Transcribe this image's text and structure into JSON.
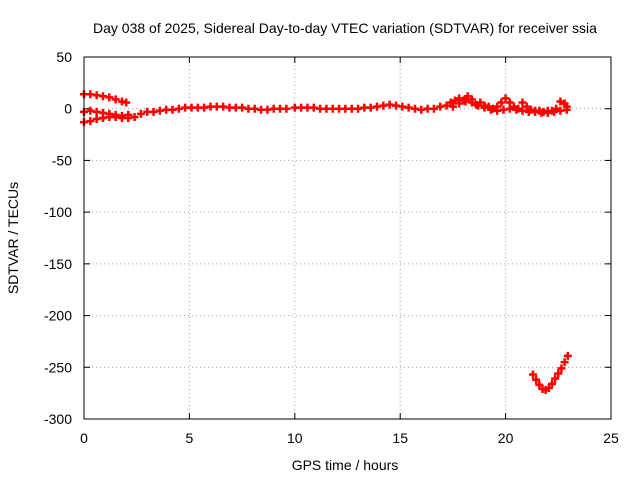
{
  "chart_data": {
    "type": "scatter",
    "title": "Day 038 of 2025, Sidereal Day-to-day VTEC variation (SDTVAR) for receiver ssia",
    "xlabel": "GPS time / hours",
    "ylabel": "SDTVAR / TECUs",
    "xlim": [
      0,
      25
    ],
    "ylim": [
      -300,
      50
    ],
    "xticks": [
      "0",
      "5",
      "10",
      "15",
      "20",
      "25"
    ],
    "yticks": [
      "50",
      "0",
      "-50",
      "-100",
      "-150",
      "-200",
      "-250",
      "-300"
    ],
    "grid": true,
    "marker": "+",
    "color": "#ff0000",
    "series": [
      {
        "points": [
          [
            0.0,
            14
          ],
          [
            0.3,
            14
          ],
          [
            0.6,
            13
          ],
          [
            0.9,
            12
          ],
          [
            1.2,
            11
          ],
          [
            1.5,
            9
          ],
          [
            1.8,
            7
          ],
          [
            2.0,
            6
          ],
          [
            0.0,
            -3
          ],
          [
            0.3,
            -2
          ],
          [
            0.6,
            -3
          ],
          [
            0.9,
            -4
          ],
          [
            1.2,
            -5
          ],
          [
            1.5,
            -6
          ],
          [
            1.8,
            -7
          ],
          [
            2.1,
            -6
          ],
          [
            0.0,
            -13
          ],
          [
            0.3,
            -12
          ],
          [
            0.6,
            -10
          ],
          [
            0.9,
            -9
          ],
          [
            1.2,
            -8
          ],
          [
            1.5,
            -8
          ],
          [
            1.8,
            -9
          ],
          [
            2.1,
            -9
          ],
          [
            2.4,
            -8
          ],
          [
            2.7,
            -5
          ],
          [
            3.0,
            -3
          ],
          [
            3.3,
            -3
          ],
          [
            3.6,
            -2
          ],
          [
            3.9,
            -1
          ],
          [
            4.2,
            -1
          ],
          [
            4.5,
            0
          ],
          [
            4.8,
            1
          ],
          [
            5.1,
            1
          ],
          [
            5.4,
            1
          ],
          [
            5.7,
            1
          ],
          [
            6.0,
            2
          ],
          [
            6.3,
            2
          ],
          [
            6.6,
            2
          ],
          [
            6.9,
            1
          ],
          [
            7.2,
            1
          ],
          [
            7.5,
            1
          ],
          [
            7.8,
            0
          ],
          [
            8.1,
            0
          ],
          [
            8.4,
            -1
          ],
          [
            8.7,
            -1
          ],
          [
            9.0,
            0
          ],
          [
            9.3,
            0
          ],
          [
            9.6,
            0
          ],
          [
            10.0,
            1
          ],
          [
            10.3,
            1
          ],
          [
            10.6,
            1
          ],
          [
            10.9,
            1
          ],
          [
            11.2,
            0
          ],
          [
            11.5,
            0
          ],
          [
            11.8,
            0
          ],
          [
            12.1,
            0
          ],
          [
            12.4,
            0
          ],
          [
            12.7,
            0
          ],
          [
            13.0,
            0
          ],
          [
            13.3,
            1
          ],
          [
            13.6,
            1
          ],
          [
            13.9,
            2
          ],
          [
            14.2,
            3
          ],
          [
            14.5,
            4
          ],
          [
            14.8,
            3
          ],
          [
            15.1,
            2
          ],
          [
            15.4,
            1
          ],
          [
            15.7,
            0
          ],
          [
            16.0,
            -1
          ],
          [
            16.3,
            0
          ],
          [
            16.6,
            0
          ],
          [
            16.9,
            2
          ],
          [
            17.2,
            3
          ],
          [
            17.4,
            6
          ],
          [
            17.6,
            8
          ],
          [
            17.8,
            10
          ],
          [
            18.0,
            8
          ],
          [
            18.2,
            12
          ],
          [
            18.4,
            6
          ],
          [
            18.6,
            4
          ],
          [
            18.8,
            6
          ],
          [
            19.0,
            3
          ],
          [
            19.2,
            2
          ],
          [
            19.4,
            0
          ],
          [
            19.6,
            2
          ],
          [
            19.8,
            6
          ],
          [
            20.0,
            10
          ],
          [
            20.2,
            6
          ],
          [
            20.4,
            2
          ],
          [
            20.6,
            0
          ],
          [
            20.8,
            6
          ],
          [
            21.0,
            2
          ],
          [
            21.2,
            -1
          ],
          [
            21.4,
            -2
          ],
          [
            21.6,
            -2
          ],
          [
            21.8,
            -3
          ],
          [
            22.0,
            -2
          ],
          [
            22.2,
            -2
          ],
          [
            22.4,
            0
          ],
          [
            22.6,
            7
          ],
          [
            22.8,
            5
          ],
          [
            22.9,
            2
          ],
          [
            17.5,
            2
          ],
          [
            17.8,
            5
          ],
          [
            18.1,
            7
          ],
          [
            18.4,
            9
          ],
          [
            18.7,
            3
          ],
          [
            19.0,
            1
          ],
          [
            19.3,
            -1
          ],
          [
            19.6,
            -2
          ],
          [
            19.9,
            -1
          ],
          [
            20.2,
            0
          ],
          [
            20.5,
            -1
          ],
          [
            20.8,
            -2
          ],
          [
            21.1,
            -3
          ],
          [
            21.4,
            -3
          ],
          [
            21.7,
            -4
          ],
          [
            22.0,
            -4
          ],
          [
            22.3,
            -3
          ],
          [
            22.6,
            -2
          ],
          [
            22.9,
            -1
          ],
          [
            21.3,
            -257
          ],
          [
            21.45,
            -262
          ],
          [
            21.6,
            -267
          ],
          [
            21.75,
            -271
          ],
          [
            21.9,
            -272
          ],
          [
            22.05,
            -270
          ],
          [
            22.2,
            -266
          ],
          [
            22.35,
            -261
          ],
          [
            22.5,
            -256
          ],
          [
            22.65,
            -251
          ],
          [
            22.8,
            -245
          ],
          [
            22.95,
            -239
          ]
        ]
      }
    ]
  }
}
